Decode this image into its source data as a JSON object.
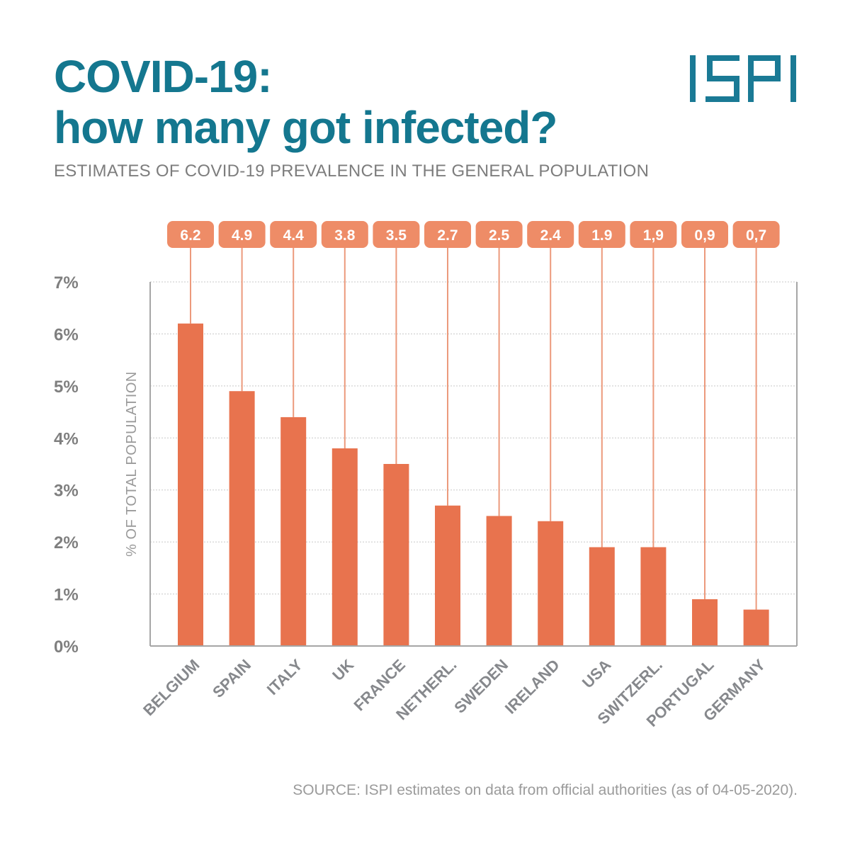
{
  "header": {
    "title_line1": "COVID-19:",
    "title_line2": "how many got infected?",
    "subtitle": "ESTIMATES OF COVID-19 PREVALENCE IN THE GENERAL POPULATION",
    "logo_text": "ISPI"
  },
  "footer": {
    "source": "SOURCE: ISPI estimates on data from official authorities (as of 04-05-2020)."
  },
  "colors": {
    "title": "#14778f",
    "bar": "#e8734e",
    "label_box": "#ee8c67",
    "leader_line": "#ec9a7c",
    "axis": "#a6a6a6",
    "grid": "#c8c8c8",
    "logo": "#1a7a95"
  },
  "chart_data": {
    "type": "bar",
    "title": "COVID-19: how many got infected?",
    "subtitle": "ESTIMATES OF COVID-19 PREVALENCE IN THE GENERAL POPULATION",
    "xlabel": "",
    "ylabel": "% OF TOTAL POPULATION",
    "ylim": [
      0,
      7
    ],
    "yticks": [
      0,
      1,
      2,
      3,
      4,
      5,
      6,
      7
    ],
    "ytick_labels": [
      "0%",
      "1%",
      "2%",
      "3%",
      "4%",
      "5%",
      "6%",
      "7%"
    ],
    "grid": true,
    "categories": [
      "BELGIUM",
      "SPAIN",
      "ITALY",
      "UK",
      "FRANCE",
      "NETHERL.",
      "SWEDEN",
      "IRELAND",
      "USA",
      "SWITZERL.",
      "PORTUGAL",
      "GERMANY"
    ],
    "values": [
      6.2,
      4.9,
      4.4,
      3.8,
      3.5,
      2.7,
      2.5,
      2.4,
      1.9,
      1.9,
      0.9,
      0.7
    ],
    "data_labels": [
      "6.2",
      "4.9",
      "4.4",
      "3.8",
      "3.5",
      "2.7",
      "2.5",
      "2.4",
      "1.9",
      "1,9",
      "0,9",
      "0,7"
    ],
    "legend": null
  }
}
